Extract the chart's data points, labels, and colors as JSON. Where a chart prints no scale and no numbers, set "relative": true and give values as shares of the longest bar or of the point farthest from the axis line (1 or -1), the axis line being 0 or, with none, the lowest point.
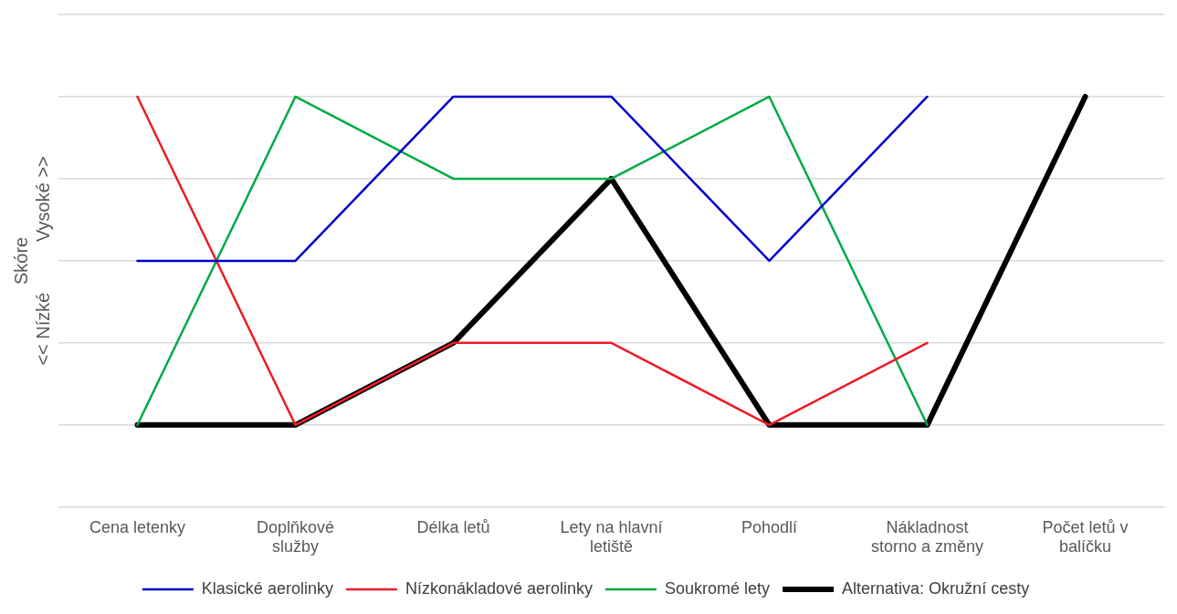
{
  "chart_data": {
    "type": "line",
    "relative": true,
    "ylabel": "Skóre\n<< Nízké          Vysoké >>",
    "categories": [
      "Cena letenky",
      "Doplňkové služby",
      "Délka letů",
      "Lety na hlavní letiště",
      "Pohodlí",
      "Nákladnost storno a změny",
      "Počet letů v balíčku"
    ],
    "series": [
      {
        "name": "Klasické aerolinky",
        "color": "#0000cc",
        "values": [
          0.6,
          0.6,
          1,
          1,
          0.6,
          1,
          null
        ]
      },
      {
        "name": "Nízkonákladové aerolinky",
        "color": "#ee1c25",
        "values": [
          1,
          0.2,
          0.4,
          0.4,
          0.2,
          0.4,
          null
        ]
      },
      {
        "name": "Soukromé lety",
        "color": "#00aa44",
        "values": [
          0.2,
          1,
          0.8,
          0.8,
          1,
          0.2,
          null
        ]
      },
      {
        "name": "Alternativa: Okružní cesty",
        "color": "#000000",
        "values": [
          0.2,
          0.2,
          0.4,
          0.8,
          0.2,
          0.2,
          1
        ]
      }
    ],
    "grid": "y",
    "legend": "bottom",
    "marker": "none",
    "line_style": "solid"
  }
}
